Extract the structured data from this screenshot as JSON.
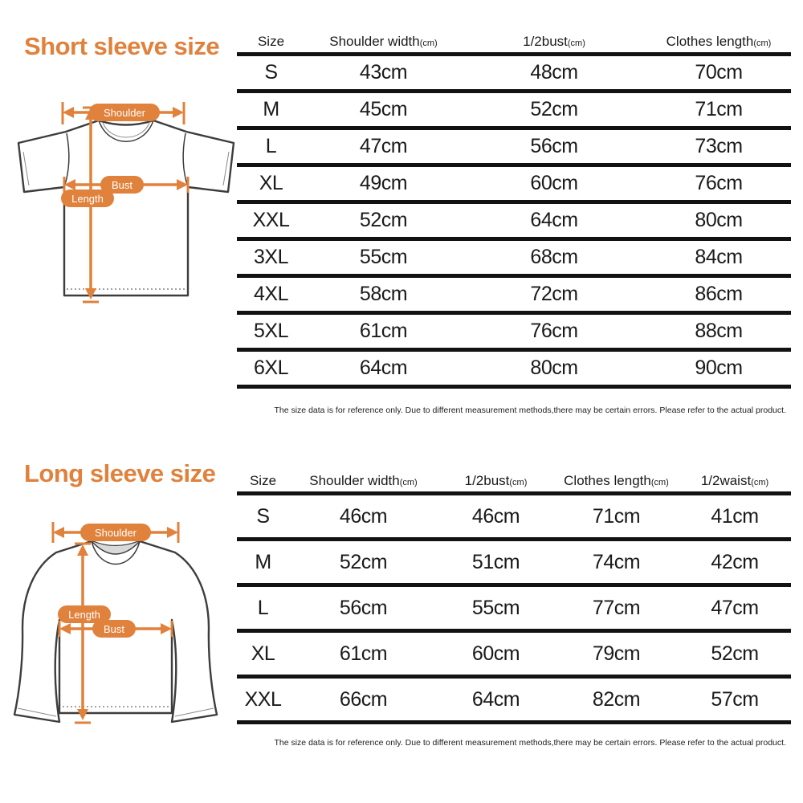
{
  "colors": {
    "accent_orange": "#E0813C",
    "table_line_black": "#121212",
    "text_ink": "#1a1a1a"
  },
  "short_sleeve": {
    "title": "Short sleeve size",
    "diagram": {
      "shoulder_label": "Shoulder",
      "bust_label": "Bust",
      "length_label": "Length"
    },
    "table": {
      "columns": [
        {
          "label": "Size",
          "unit": ""
        },
        {
          "label": "Shoulder width",
          "unit": "(cm)"
        },
        {
          "label": "1/2bust",
          "unit": "(cm)"
        },
        {
          "label": "Clothes length",
          "unit": "(cm)"
        }
      ],
      "rows": [
        [
          "S",
          "43cm",
          "48cm",
          "70cm"
        ],
        [
          "M",
          "45cm",
          "52cm",
          "71cm"
        ],
        [
          "L",
          "47cm",
          "56cm",
          "73cm"
        ],
        [
          "XL",
          "49cm",
          "60cm",
          "76cm"
        ],
        [
          "XXL",
          "52cm",
          "64cm",
          "80cm"
        ],
        [
          "3XL",
          "55cm",
          "68cm",
          "84cm"
        ],
        [
          "4XL",
          "58cm",
          "72cm",
          "86cm"
        ],
        [
          "5XL",
          "61cm",
          "76cm",
          "88cm"
        ],
        [
          "6XL",
          "64cm",
          "80cm",
          "90cm"
        ]
      ]
    },
    "disclaimer": "The size data is for reference only. Due to different measurement methods,there may be certain errors. Please refer to the actual product."
  },
  "long_sleeve": {
    "title": "Long sleeve size",
    "diagram": {
      "shoulder_label": "Shoulder",
      "bust_label": "Bust",
      "length_label": "Length"
    },
    "table": {
      "columns": [
        {
          "label": "Size",
          "unit": ""
        },
        {
          "label": "Shoulder width",
          "unit": "(cm)"
        },
        {
          "label": "1/2bust",
          "unit": "(cm)"
        },
        {
          "label": "Clothes length",
          "unit": "(cm)"
        },
        {
          "label": "1/2waist",
          "unit": "(cm)"
        }
      ],
      "rows": [
        [
          "S",
          "46cm",
          "46cm",
          "71cm",
          "41cm"
        ],
        [
          "M",
          "52cm",
          "51cm",
          "74cm",
          "42cm"
        ],
        [
          "L",
          "56cm",
          "55cm",
          "77cm",
          "47cm"
        ],
        [
          "XL",
          "61cm",
          "60cm",
          "79cm",
          "52cm"
        ],
        [
          "XXL",
          "66cm",
          "64cm",
          "82cm",
          "57cm"
        ]
      ]
    },
    "disclaimer": "The size data is for reference only. Due to different measurement methods,there may be certain errors. Please refer to the actual product."
  }
}
